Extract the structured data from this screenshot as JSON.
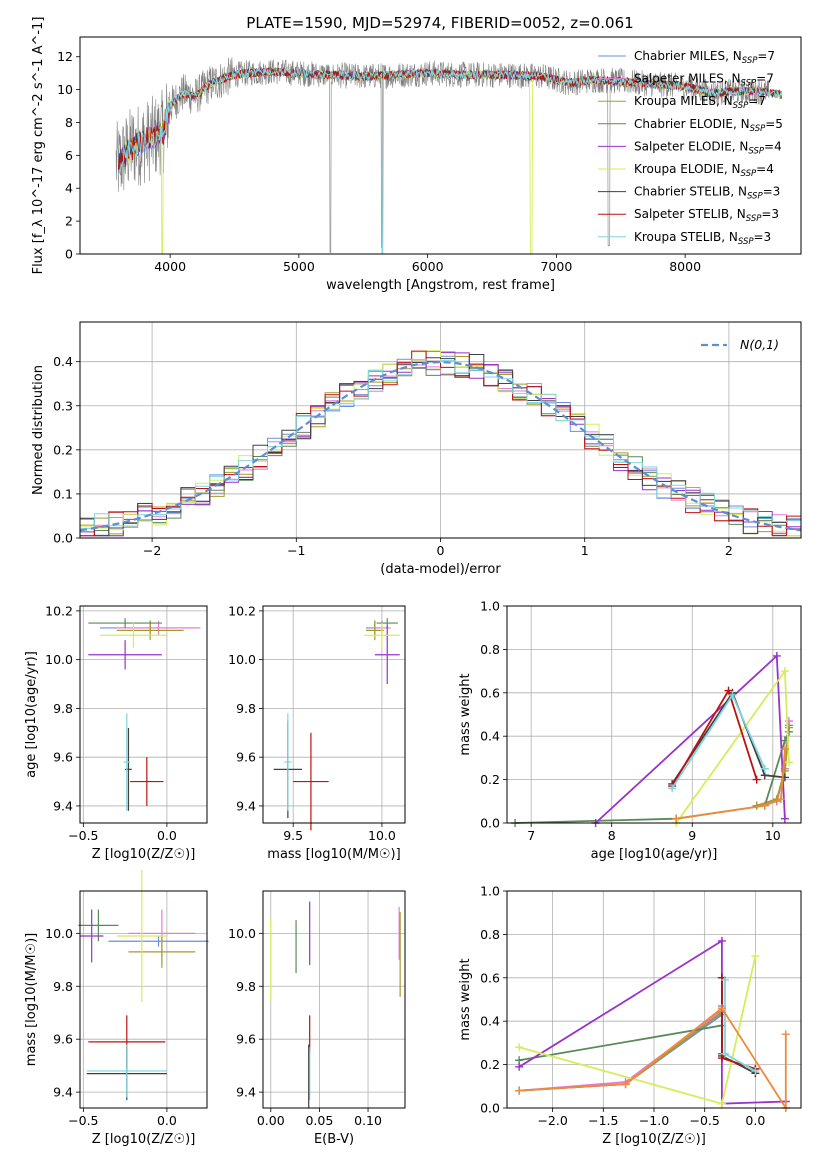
{
  "figure_title": "PLATE=1590, MJD=52974, FIBERID=0052, z=0.061",
  "colors": {
    "Chabrier MILES": "#6a8fe0",
    "Salpeter MILES": "#e87ad8",
    "Kroupa MILES": "#a89a28",
    "Chabrier ELODIE": "#5a8a5a",
    "Salpeter ELODIE": "#9932cc",
    "Kroupa ELODIE": "#d6ec5a",
    "Chabrier STELIB": "#404040",
    "Salpeter STELIB": "#c01010",
    "Kroupa STELIB": "#7ed6de",
    "data": "#808080",
    "normal": "#5b8fd6",
    "accent_orange": "#ed8a3c"
  },
  "chart_data": [
    {
      "id": "spectrum",
      "type": "line",
      "title": "PLATE=1590, MJD=52974, FIBERID=0052, z=0.061",
      "xlabel": "wavelength [Angstrom, rest frame]",
      "ylabel": "Flux [f_λ 10^-17 erg cm^-2 s^-1 A^-1]",
      "xlim": [
        3300,
        8900
      ],
      "ylim": [
        0,
        13.2
      ],
      "xticks": [
        4000,
        5000,
        6000,
        7000,
        8000
      ],
      "yticks": [
        0,
        2,
        4,
        6,
        8,
        10,
        12
      ],
      "grid": false,
      "legend_position": "right",
      "legend": [
        {
          "name": "Chabrier MILES",
          "nssp": "7"
        },
        {
          "name": "Salpeter MILES",
          "nssp": "7"
        },
        {
          "name": "Kroupa MILES",
          "nssp": "7"
        },
        {
          "name": "Chabrier ELODIE",
          "nssp": "5"
        },
        {
          "name": "Salpeter ELODIE",
          "nssp": "4"
        },
        {
          "name": "Kroupa ELODIE",
          "nssp": "4"
        },
        {
          "name": "Chabrier STELIB",
          "nssp": "3"
        },
        {
          "name": "Salpeter STELIB",
          "nssp": "3"
        },
        {
          "name": "Kroupa STELIB",
          "nssp": "3"
        }
      ],
      "continuum": {
        "x": [
          3600,
          3700,
          3800,
          3900,
          3950,
          4000,
          4100,
          4200,
          4300,
          4400,
          4500,
          4600,
          4800,
          5000,
          5200,
          5500,
          5800,
          6000,
          6300,
          6600,
          6900,
          7100,
          7300,
          7500,
          7800,
          8000,
          8200,
          8400,
          8600,
          8800
        ],
        "y": [
          5.5,
          6.5,
          6.8,
          7.2,
          7.5,
          9.0,
          9.8,
          9.6,
          10.3,
          10.6,
          10.9,
          11.0,
          11.1,
          11.0,
          10.9,
          10.8,
          10.9,
          11.0,
          10.9,
          10.9,
          10.8,
          10.4,
          10.6,
          10.5,
          10.3,
          10.2,
          9.8,
          9.9,
          9.9,
          9.6
        ]
      },
      "model_range": [
        3600,
        8750
      ],
      "data_range": [
        3580,
        8650
      ]
    },
    {
      "id": "residuals",
      "type": "step",
      "xlabel": "(data-model)/error",
      "ylabel": "Normed distribution",
      "xlim": [
        -2.5,
        2.5
      ],
      "ylim": [
        0,
        0.49
      ],
      "xticks": [
        -2,
        -1,
        0,
        1,
        2
      ],
      "yticks": [
        0.0,
        0.1,
        0.2,
        0.3,
        0.4
      ],
      "grid": true,
      "legend_position": "top-right",
      "legend": [
        {
          "name": "N(0,1)",
          "style": "dashed"
        }
      ],
      "bin_width": 0.1,
      "bin_start": -2.5
    },
    {
      "id": "age-vs-Z",
      "type": "errorbar",
      "xlabel": "Z [log10(Z/Z☉)]",
      "ylabel": "age [log10(age/yr)]",
      "xlim": [
        -0.52,
        0.24
      ],
      "ylim": [
        9.33,
        10.22
      ],
      "xticks": [
        -0.5,
        0.0
      ],
      "yticks": [
        9.4,
        9.6,
        9.8,
        10.0,
        10.2
      ],
      "grid": true,
      "points": [
        {
          "series": "Chabrier MILES",
          "x": -0.1,
          "y": 10.13,
          "xerr": 0.3,
          "yerr": 0.03
        },
        {
          "series": "Salpeter MILES",
          "x": -0.05,
          "y": 10.13,
          "xerr": 0.25,
          "yerr": 0.03
        },
        {
          "series": "Kroupa MILES",
          "x": -0.1,
          "y": 10.12,
          "xerr": 0.2,
          "yerr": 0.04
        },
        {
          "series": "Chabrier ELODIE",
          "x": -0.25,
          "y": 10.15,
          "xerr": 0.22,
          "yerr": 0.02
        },
        {
          "series": "Salpeter ELODIE",
          "x": -0.25,
          "y": 10.02,
          "xerr": 0.22,
          "yerr": 0.06
        },
        {
          "series": "Kroupa ELODIE",
          "x": -0.2,
          "y": 10.1,
          "xerr": 0.2,
          "yerr": 0.05
        },
        {
          "series": "Chabrier STELIB",
          "x": -0.23,
          "y": 9.55,
          "xerr": 0.02,
          "yerr": 0.17
        },
        {
          "series": "Salpeter STELIB",
          "x": -0.12,
          "y": 9.5,
          "xerr": 0.1,
          "yerr": 0.1
        },
        {
          "series": "Kroupa STELIB",
          "x": -0.24,
          "y": 9.58,
          "xerr": 0.02,
          "yerr": 0.2
        }
      ]
    },
    {
      "id": "age-vs-mass",
      "type": "errorbar",
      "xlabel": "mass [log10(M/M☉)]",
      "ylabel": "",
      "xlim": [
        9.33,
        10.13
      ],
      "ylim": [
        9.33,
        10.22
      ],
      "xticks": [
        9.5,
        10.0
      ],
      "yticks": [
        9.4,
        9.6,
        9.8,
        10.0,
        10.2
      ],
      "grid": true,
      "points": [
        {
          "series": "Chabrier MILES",
          "x": 9.96,
          "y": 10.13,
          "xerr": 0.05,
          "yerr": 0.03
        },
        {
          "series": "Salpeter MILES",
          "x": 10.0,
          "y": 10.13,
          "xerr": 0.05,
          "yerr": 0.03
        },
        {
          "series": "Kroupa MILES",
          "x": 9.96,
          "y": 10.12,
          "xerr": 0.05,
          "yerr": 0.04
        },
        {
          "series": "Chabrier ELODIE",
          "x": 10.03,
          "y": 10.15,
          "xerr": 0.06,
          "yerr": 0.02
        },
        {
          "series": "Salpeter ELODIE",
          "x": 10.03,
          "y": 10.02,
          "xerr": 0.07,
          "yerr": 0.12
        },
        {
          "series": "Kroupa ELODIE",
          "x": 10.0,
          "y": 10.1,
          "xerr": 0.1,
          "yerr": 0.05
        },
        {
          "series": "Chabrier STELIB",
          "x": 9.47,
          "y": 9.55,
          "xerr": 0.08,
          "yerr": 0.2
        },
        {
          "series": "Salpeter STELIB",
          "x": 9.6,
          "y": 9.5,
          "xerr": 0.1,
          "yerr": 0.2
        },
        {
          "series": "Kroupa STELIB",
          "x": 9.47,
          "y": 9.58,
          "xerr": 0.02,
          "yerr": 0.2
        }
      ]
    },
    {
      "id": "weight-vs-age",
      "type": "line",
      "xlabel": "age [log10(age/yr)]",
      "ylabel": "mass weight",
      "xlim": [
        6.7,
        10.35
      ],
      "ylim": [
        0.0,
        1.0
      ],
      "xticks": [
        7,
        8,
        9,
        10
      ],
      "yticks": [
        0.0,
        0.2,
        0.4,
        0.6,
        0.8,
        1.0
      ],
      "grid": true,
      "series": [
        {
          "name": "Chabrier MILES",
          "x": [
            9.8,
            10.05,
            10.15,
            10.2
          ],
          "y": [
            0.08,
            0.1,
            0.25,
            0.45
          ]
        },
        {
          "name": "Salpeter MILES",
          "x": [
            9.8,
            10.05,
            10.15,
            10.2
          ],
          "y": [
            0.08,
            0.1,
            0.25,
            0.47
          ]
        },
        {
          "name": "Kroupa MILES",
          "x": [
            9.8,
            10.05,
            10.15,
            10.2
          ],
          "y": [
            0.08,
            0.11,
            0.24,
            0.44
          ]
        },
        {
          "name": "Chabrier ELODIE",
          "x": [
            6.8,
            8.8,
            9.9,
            10.15,
            10.2
          ],
          "y": [
            0.0,
            0.02,
            0.08,
            0.38,
            0.42
          ]
        },
        {
          "name": "Salpeter ELODIE",
          "x": [
            7.8,
            10.05,
            10.15
          ],
          "y": [
            0.0,
            0.77,
            0.02
          ]
        },
        {
          "name": "Kroupa ELODIE",
          "x": [
            8.8,
            10.15,
            10.2
          ],
          "y": [
            0.0,
            0.7,
            0.28
          ]
        },
        {
          "name": "Chabrier STELIB",
          "x": [
            8.75,
            9.5,
            9.9,
            10.15
          ],
          "y": [
            0.18,
            0.6,
            0.22,
            0.21
          ]
        },
        {
          "name": "Salpeter STELIB",
          "x": [
            8.75,
            9.45,
            9.8
          ],
          "y": [
            0.17,
            0.61,
            0.2
          ]
        },
        {
          "name": "Kroupa STELIB",
          "x": [
            8.75,
            9.5,
            9.9
          ],
          "y": [
            0.16,
            0.59,
            0.25
          ]
        }
      ],
      "extra_series": [
        {
          "color": "accent_orange",
          "x": [
            8.8,
            9.9,
            10.1,
            10.15
          ],
          "y": [
            0.02,
            0.08,
            0.11,
            0.34
          ]
        }
      ]
    },
    {
      "id": "mass-vs-Z",
      "type": "errorbar",
      "xlabel": "Z [log10(Z/Z☉)]",
      "ylabel": "mass [log10(M/M☉)]",
      "xlim": [
        -0.52,
        0.24
      ],
      "ylim": [
        9.34,
        10.16
      ],
      "xticks": [
        -0.5,
        0.0
      ],
      "yticks": [
        9.4,
        9.6,
        9.8,
        10.0
      ],
      "grid": true,
      "points": [
        {
          "series": "Chabrier MILES",
          "x": -0.05,
          "y": 9.97,
          "xerr": 0.3,
          "yerr": 0.02
        },
        {
          "series": "Salpeter MILES",
          "x": -0.03,
          "y": 10.0,
          "xerr": 0.2,
          "yerr": 0.09
        },
        {
          "series": "Kroupa MILES",
          "x": -0.03,
          "y": 9.93,
          "xerr": 0.2,
          "yerr": 0.06
        },
        {
          "series": "Chabrier ELODIE",
          "x": -0.41,
          "y": 10.03,
          "xerr": 0.12,
          "yerr": 0.06
        },
        {
          "series": "Salpeter ELODIE",
          "x": -0.45,
          "y": 9.99,
          "xerr": 0.07,
          "yerr": 0.1
        },
        {
          "series": "Kroupa ELODIE",
          "x": -0.15,
          "y": 9.99,
          "xerr": 0.15,
          "yerr": 0.25
        },
        {
          "series": "Chabrier STELIB",
          "x": -0.24,
          "y": 9.47,
          "xerr": 0.24,
          "yerr": 0.1
        },
        {
          "series": "Salpeter STELIB",
          "x": -0.24,
          "y": 9.59,
          "xerr": 0.23,
          "yerr": 0.1
        },
        {
          "series": "Kroupa STELIB",
          "x": -0.24,
          "y": 9.48,
          "xerr": 0.24,
          "yerr": 0.1
        }
      ]
    },
    {
      "id": "mass-vs-ebv",
      "type": "errorbar",
      "xlabel": "E(B-V)",
      "ylabel": "",
      "xlim": [
        -0.008,
        0.138
      ],
      "ylim": [
        9.34,
        10.16
      ],
      "xticks": [
        0.0,
        0.05,
        0.1
      ],
      "tick_labels": [
        "0.00",
        "0.05",
        "0.10"
      ],
      "yticks": [
        9.4,
        9.6,
        9.8,
        10.0
      ],
      "grid": true,
      "points": [
        {
          "series": "Kroupa ELODIE",
          "x": 0.0,
          "y": 9.9,
          "yerr": 0.16
        },
        {
          "series": "Chabrier ELODIE",
          "x": 0.026,
          "y": 9.95,
          "yerr": 0.1
        },
        {
          "series": "Salpeter ELODIE",
          "x": 0.04,
          "y": 10.0,
          "yerr": 0.12
        },
        {
          "series": "Salpeter STELIB",
          "x": 0.04,
          "y": 9.62,
          "yerr": 0.07
        },
        {
          "series": "Kroupa STELIB",
          "x": 0.04,
          "y": 9.47,
          "yerr": 0.1
        },
        {
          "series": "Chabrier STELIB",
          "x": 0.039,
          "y": 9.46,
          "yerr": 0.12
        },
        {
          "series": "Salpeter MILES",
          "x": 0.132,
          "y": 10.0,
          "yerr": 0.1
        },
        {
          "series": "Kroupa MILES",
          "x": 0.133,
          "y": 9.92,
          "yerr": 0.16
        }
      ]
    },
    {
      "id": "weight-vs-Z",
      "type": "line",
      "xlabel": "Z [log10(Z/Z☉)]",
      "ylabel": "mass weight",
      "xlim": [
        -2.45,
        0.45
      ],
      "ylim": [
        0.0,
        1.0
      ],
      "xticks": [
        -2.0,
        -1.5,
        -1.0,
        -0.5,
        0.0
      ],
      "yticks": [
        0.0,
        0.2,
        0.4,
        0.6,
        0.8,
        1.0
      ],
      "grid": true,
      "series": [
        {
          "name": "Chabrier MILES",
          "x": [
            -2.33,
            -1.28,
            -0.33,
            -0.33
          ],
          "y": [
            0.08,
            0.11,
            0.43,
            0.47
          ]
        },
        {
          "name": "Salpeter MILES",
          "x": [
            -2.33,
            -1.28,
            -0.33,
            -0.33
          ],
          "y": [
            0.08,
            0.12,
            0.45,
            0.47
          ]
        },
        {
          "name": "Kroupa MILES",
          "x": [
            -2.33,
            -1.28,
            -0.33
          ],
          "y": [
            0.08,
            0.11,
            0.44
          ]
        },
        {
          "name": "Chabrier ELODIE",
          "x": [
            -2.33,
            -0.33,
            -0.33
          ],
          "y": [
            0.22,
            0.38,
            0.25
          ]
        },
        {
          "name": "Salpeter ELODIE",
          "x": [
            -2.33,
            -0.33,
            -0.33,
            0.3
          ],
          "y": [
            0.19,
            0.77,
            0.02,
            0.03
          ]
        },
        {
          "name": "Kroupa ELODIE",
          "x": [
            -2.33,
            -0.33,
            0.0,
            -0.33
          ],
          "y": [
            0.28,
            0.02,
            0.7,
            0.02
          ]
        },
        {
          "name": "Chabrier STELIB",
          "x": [
            -0.33,
            -0.33,
            0.0,
            0.0
          ],
          "y": [
            0.6,
            0.24,
            0.16,
            0.18
          ]
        },
        {
          "name": "Salpeter STELIB",
          "x": [
            -0.33,
            -0.33,
            0.0
          ],
          "y": [
            0.6,
            0.23,
            0.18
          ]
        },
        {
          "name": "Kroupa STELIB",
          "x": [
            -0.3,
            -0.3,
            0.0
          ],
          "y": [
            0.59,
            0.25,
            0.17
          ]
        }
      ],
      "extra_series": [
        {
          "color": "accent_orange",
          "x": [
            -2.33,
            -1.28,
            -0.33,
            0.3,
            0.3
          ],
          "y": [
            0.08,
            0.11,
            0.46,
            0.0,
            0.34
          ]
        }
      ]
    }
  ]
}
